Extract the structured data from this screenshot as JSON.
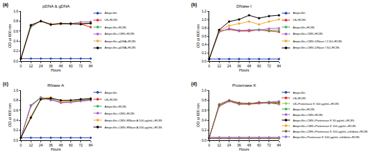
{
  "chart_data": [
    {
      "type": "line",
      "title": "pDNA & gDNA",
      "annotations": [
        "(a)"
      ],
      "x_label": "Hours",
      "y_label": "OD at 600 nm",
      "x": [
        0,
        12,
        24,
        36,
        48,
        60,
        72,
        84
      ],
      "xlim": [
        0,
        84
      ],
      "xticks": [
        0,
        12,
        24,
        36,
        48,
        60,
        72,
        84
      ],
      "ylim": [
        0,
        1
      ],
      "yticks": [
        {
          "value": 0,
          "label": "0.0"
        },
        0.2,
        0.4,
        0.6,
        0.8,
        {
          "value": 1,
          "label": "1.0"
        }
      ],
      "marker": "diamond",
      "line_style": "solid",
      "grid": false,
      "series": [
        {
          "name": "Ampicillin",
          "color": "#1f3fbf",
          "values": [
            0.05,
            0.05,
            0.05,
            0.05,
            0.05,
            0.05,
            0.05,
            0.05
          ]
        },
        {
          "name": "LB+RC85",
          "color": "#e0281c",
          "values": [
            0.05,
            0.7,
            0.8,
            0.73,
            0.75,
            0.74,
            0.74,
            0.68
          ]
        },
        {
          "name": "Ampicillin+RC85",
          "color": "#3cb34a",
          "values": [
            0.05,
            0.68,
            0.8,
            0.74,
            0.75,
            0.75,
            0.75,
            0.75
          ]
        },
        {
          "name": "Ampicillin+CMV+RC85",
          "color": "#b05ac8",
          "values": [
            0.05,
            0.7,
            0.8,
            0.74,
            0.75,
            0.75,
            0.78,
            0.79
          ]
        },
        {
          "name": "Ampicillin+gDNA+RC85",
          "color": "#f5a623",
          "values": [
            0.05,
            0.72,
            0.79,
            0.74,
            0.74,
            0.75,
            0.75,
            0.76
          ]
        },
        {
          "name": "Ampicillin+pDNA+RC85",
          "color": "#000000",
          "values": [
            0.05,
            0.72,
            0.8,
            0.73,
            0.75,
            0.75,
            0.74,
            0.76
          ]
        }
      ]
    },
    {
      "type": "line",
      "title": "DNase I",
      "annotations": [
        "(b)"
      ],
      "x_label": "Hours",
      "y_label": "OD at 600 nm",
      "x": [
        0,
        12,
        24,
        36,
        48,
        60,
        72,
        84
      ],
      "xlim": [
        0,
        84
      ],
      "xticks": [
        0,
        12,
        24,
        36,
        48,
        60,
        72,
        84
      ],
      "ylim": [
        0,
        1.2
      ],
      "yticks": [
        {
          "value": 0,
          "label": "0.0"
        },
        0.2,
        0.4,
        0.6,
        0.8,
        {
          "value": 1,
          "label": "1.0"
        },
        1.2
      ],
      "marker": "diamond",
      "line_style": "solid",
      "grid": false,
      "series": [
        {
          "name": "Ampicillin",
          "color": "#1f3fbf",
          "values": [
            0.05,
            0.05,
            0.05,
            0.05,
            0.05,
            0.05,
            0.05,
            0.05
          ]
        },
        {
          "name": "LB+RC85",
          "color": "#e0281c",
          "values": [
            0.05,
            0.72,
            0.76,
            0.72,
            0.72,
            0.75,
            0.72,
            0.7
          ]
        },
        {
          "name": "Ampicillin+RC85",
          "color": "#3cb34a",
          "values": [
            0.05,
            0.7,
            0.78,
            0.74,
            0.74,
            0.76,
            0.74,
            0.74
          ]
        },
        {
          "name": "Ampicillin+CMV+RC85",
          "color": "#b05ac8",
          "values": [
            0.05,
            0.7,
            0.78,
            0.73,
            0.75,
            0.74,
            0.78,
            0.79
          ]
        },
        {
          "name": "Ampicillin+CMV+DNase I 2.5U+RC85",
          "color": "#f5a623",
          "values": [
            0.05,
            0.73,
            0.85,
            0.9,
            0.95,
            0.88,
            0.95,
            1.0
          ]
        },
        {
          "name": "Ampicillin+CMV+DNase I 5U+RC85",
          "color": "#000000",
          "values": [
            0.05,
            0.75,
            0.95,
            1.0,
            1.1,
            1.03,
            1.08,
            1.1
          ]
        }
      ]
    },
    {
      "type": "line",
      "title": "RNase A",
      "annotations": [
        "(c)"
      ],
      "x_label": "Hours",
      "y_label": "OD at 600 nm",
      "x": [
        0,
        12,
        24,
        36,
        48,
        60,
        72,
        84
      ],
      "xlim": [
        0,
        84
      ],
      "xticks": [
        0,
        12,
        24,
        36,
        48,
        60,
        72,
        84
      ],
      "ylim": [
        0,
        1
      ],
      "yticks": [
        {
          "value": 0,
          "label": "0.0"
        },
        0.2,
        0.4,
        0.6,
        0.8,
        {
          "value": 1,
          "label": "1.0"
        }
      ],
      "marker": "diamond",
      "line_style": "solid",
      "grid": false,
      "series": [
        {
          "name": "Ampicillin",
          "color": "#1f3fbf",
          "values": [
            0.05,
            0.05,
            0.05,
            0.05,
            0.05,
            0.05,
            0.05,
            0.05
          ]
        },
        {
          "name": "LB+RC85",
          "color": "#e0281c",
          "values": [
            0.05,
            0.7,
            0.85,
            0.82,
            0.75,
            0.76,
            0.8,
            0.8
          ]
        },
        {
          "name": "Ampicillin+RC85",
          "color": "#3cb34a",
          "values": [
            0.05,
            0.7,
            0.86,
            0.82,
            0.76,
            0.77,
            0.8,
            0.81
          ]
        },
        {
          "name": "Ampicillin+CMV+RC85",
          "color": "#b05ac8",
          "values": [
            0.05,
            0.68,
            0.85,
            0.8,
            0.76,
            0.76,
            0.78,
            0.8
          ]
        },
        {
          "name": "Ampicillin+CMV+RNase A 100 µg/mL+RC85",
          "color": "#f5a623",
          "values": [
            0.05,
            0.48,
            0.83,
            0.86,
            0.78,
            0.78,
            0.82,
            0.84
          ]
        },
        {
          "name": "Ampicillin+CMV+RNase A 200 µg/mL+RC85",
          "color": "#000000",
          "values": [
            0.05,
            0.45,
            0.82,
            0.84,
            0.8,
            0.8,
            0.82,
            0.83
          ]
        }
      ]
    },
    {
      "type": "line",
      "title": "Proteinase K",
      "annotations": [
        "(d)"
      ],
      "x_label": "Hours",
      "y_label": "OD at 600 nm",
      "x": [
        0,
        12,
        24,
        36,
        48,
        60,
        72,
        84
      ],
      "xlim": [
        0,
        84
      ],
      "xticks": [
        0,
        12,
        24,
        36,
        48,
        60,
        72,
        84
      ],
      "ylim": [
        0,
        1
      ],
      "yticks": [
        {
          "value": 0,
          "label": "0.0"
        },
        0.2,
        0.4,
        0.6,
        0.8,
        {
          "value": 1,
          "label": "1.0"
        }
      ],
      "marker": "diamond",
      "line_style": "solid",
      "grid": false,
      "series": [
        {
          "name": "Ampicillin",
          "color": "#1f3fbf",
          "values": [
            0.05,
            0.05,
            0.05,
            0.05,
            0.05,
            0.05,
            0.05,
            0.05
          ]
        },
        {
          "name": "LB+RC85",
          "color": "#e0281c",
          "values": [
            0.05,
            0.68,
            0.78,
            0.72,
            0.72,
            0.74,
            0.75,
            0.72
          ]
        },
        {
          "name": "LB+Proteinase K 100 µg/mL+RC85",
          "color": "#8fd14f",
          "values": [
            0.05,
            0.7,
            0.8,
            0.74,
            0.73,
            0.75,
            0.77,
            0.73
          ]
        },
        {
          "name": "Ampicillin+RC85",
          "color": "#3cb34a",
          "values": [
            0.05,
            0.69,
            0.79,
            0.73,
            0.74,
            0.75,
            0.76,
            0.76
          ]
        },
        {
          "name": "Ampicillin+CMV+RC85",
          "color": "#b05ac8",
          "values": [
            0.05,
            0.7,
            0.78,
            0.74,
            0.74,
            0.74,
            0.76,
            0.78
          ]
        },
        {
          "name": "Ampicillin+CMV+Proteinase K 50 µg/mL+RC85",
          "color": "#000000",
          "values": [
            0.04,
            0.04,
            0.04,
            0.04,
            0.04,
            0.04,
            0.04,
            0.04
          ]
        },
        {
          "name": "Ampicillin+CMV+Proteinase K 100 µg/mL+RC85",
          "color": "#f5a623",
          "values": [
            0.05,
            0.05,
            0.05,
            0.05,
            0.05,
            0.05,
            0.05,
            0.05
          ]
        },
        {
          "name": "Ampicillin+CMV+Proteinase K 100 µg/mL+inhibitor+RC85",
          "color": "#8b5a2b",
          "values": [
            0.05,
            0.72,
            0.8,
            0.75,
            0.73,
            0.76,
            0.74,
            0.75
          ]
        },
        {
          "name": "Ampicillin+Proteinase K 100 µg/mL+inhibitor+RC85",
          "color": "#9370db",
          "values": [
            0.06,
            0.06,
            0.06,
            0.06,
            0.06,
            0.06,
            0.06,
            0.06
          ]
        }
      ]
    }
  ]
}
